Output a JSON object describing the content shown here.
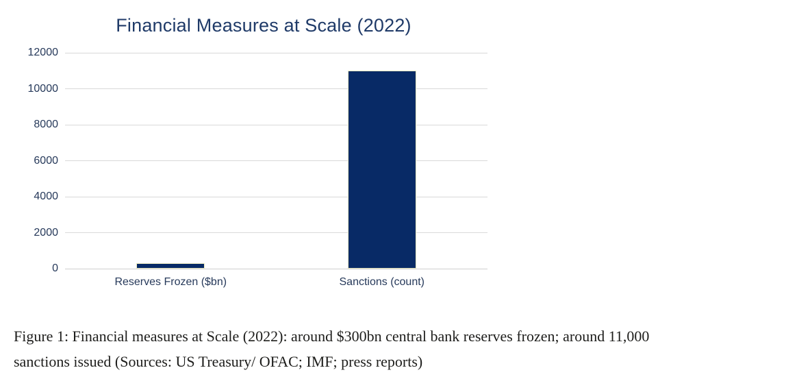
{
  "chart_data": {
    "type": "bar",
    "title": "Financial Measures at Scale (2022)",
    "categories": [
      "Reserves Frozen ($bn)",
      "Sanctions (count)"
    ],
    "values": [
      300,
      11000
    ],
    "xlabel": "",
    "ylabel": "",
    "ylim": [
      0,
      12000
    ],
    "yticks": [
      0,
      2000,
      4000,
      6000,
      8000,
      10000,
      12000
    ],
    "grid": true,
    "legend": "none",
    "colors": {
      "bar_fill": "#082a66",
      "bar_border": "#f2efc4",
      "gridline": "#d9d9d9",
      "axis_line": "#cfcfcf",
      "title_text": "#1f3a68",
      "tick_text": "#26395a",
      "caption_text": "#1d1d1b",
      "page_bg": "#ffffff"
    }
  },
  "caption": {
    "line1": "Figure 1: Financial measures at Scale (2022): around $300bn central bank reserves frozen; around 11,000",
    "line2": "sanctions issued (Sources: US Treasury/ OFAC; IMF; press reports)"
  }
}
